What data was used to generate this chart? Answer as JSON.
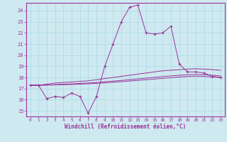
{
  "xlabel": "Windchill (Refroidissement éolien,°C)",
  "xlim": [
    -0.5,
    23.5
  ],
  "ylim": [
    14.5,
    24.7
  ],
  "yticks": [
    15,
    16,
    17,
    18,
    19,
    20,
    21,
    22,
    23,
    24
  ],
  "xticks": [
    0,
    1,
    2,
    3,
    4,
    5,
    6,
    7,
    8,
    9,
    10,
    11,
    12,
    13,
    14,
    15,
    16,
    17,
    18,
    19,
    20,
    21,
    22,
    23
  ],
  "bg_color": "#cfe9f0",
  "grid_color": "#a8d8e8",
  "line_color": "#993399",
  "main_x": [
    0,
    1,
    2,
    3,
    4,
    5,
    6,
    7,
    8,
    9,
    10,
    11,
    12,
    13,
    14,
    15,
    16,
    17,
    18,
    19,
    20,
    21,
    22,
    23
  ],
  "main_y": [
    17.3,
    17.3,
    16.1,
    16.3,
    16.2,
    16.6,
    16.3,
    14.8,
    16.3,
    19.0,
    21.0,
    23.0,
    24.3,
    24.5,
    22.0,
    21.9,
    22.0,
    22.6,
    19.2,
    18.5,
    18.5,
    18.4,
    18.1,
    18.0
  ],
  "smooth1_x": [
    0,
    1,
    2,
    3,
    4,
    5,
    6,
    7,
    8,
    9,
    10,
    11,
    12,
    13,
    14,
    15,
    16,
    17,
    18,
    19,
    20,
    21,
    22,
    23
  ],
  "smooth1_y": [
    17.3,
    17.3,
    17.4,
    17.5,
    17.55,
    17.6,
    17.65,
    17.7,
    17.8,
    17.9,
    18.0,
    18.1,
    18.2,
    18.3,
    18.4,
    18.5,
    18.6,
    18.65,
    18.7,
    18.75,
    18.78,
    18.75,
    18.7,
    18.65
  ],
  "smooth2_x": [
    0,
    1,
    2,
    3,
    4,
    5,
    6,
    7,
    8,
    9,
    10,
    11,
    12,
    13,
    14,
    15,
    16,
    17,
    18,
    19,
    20,
    21,
    22,
    23
  ],
  "smooth2_y": [
    17.3,
    17.3,
    17.33,
    17.36,
    17.4,
    17.43,
    17.47,
    17.5,
    17.55,
    17.61,
    17.67,
    17.73,
    17.8,
    17.87,
    17.94,
    18.01,
    18.08,
    18.14,
    18.2,
    18.24,
    18.27,
    18.24,
    18.2,
    18.14
  ],
  "smooth3_x": [
    0,
    1,
    2,
    3,
    4,
    5,
    6,
    7,
    8,
    9,
    10,
    11,
    12,
    13,
    14,
    15,
    16,
    17,
    18,
    19,
    20,
    21,
    22,
    23
  ],
  "smooth3_y": [
    17.3,
    17.3,
    17.31,
    17.33,
    17.35,
    17.37,
    17.4,
    17.43,
    17.47,
    17.52,
    17.57,
    17.62,
    17.68,
    17.74,
    17.8,
    17.86,
    17.92,
    17.98,
    18.04,
    18.09,
    18.12,
    18.09,
    18.05,
    17.99
  ]
}
